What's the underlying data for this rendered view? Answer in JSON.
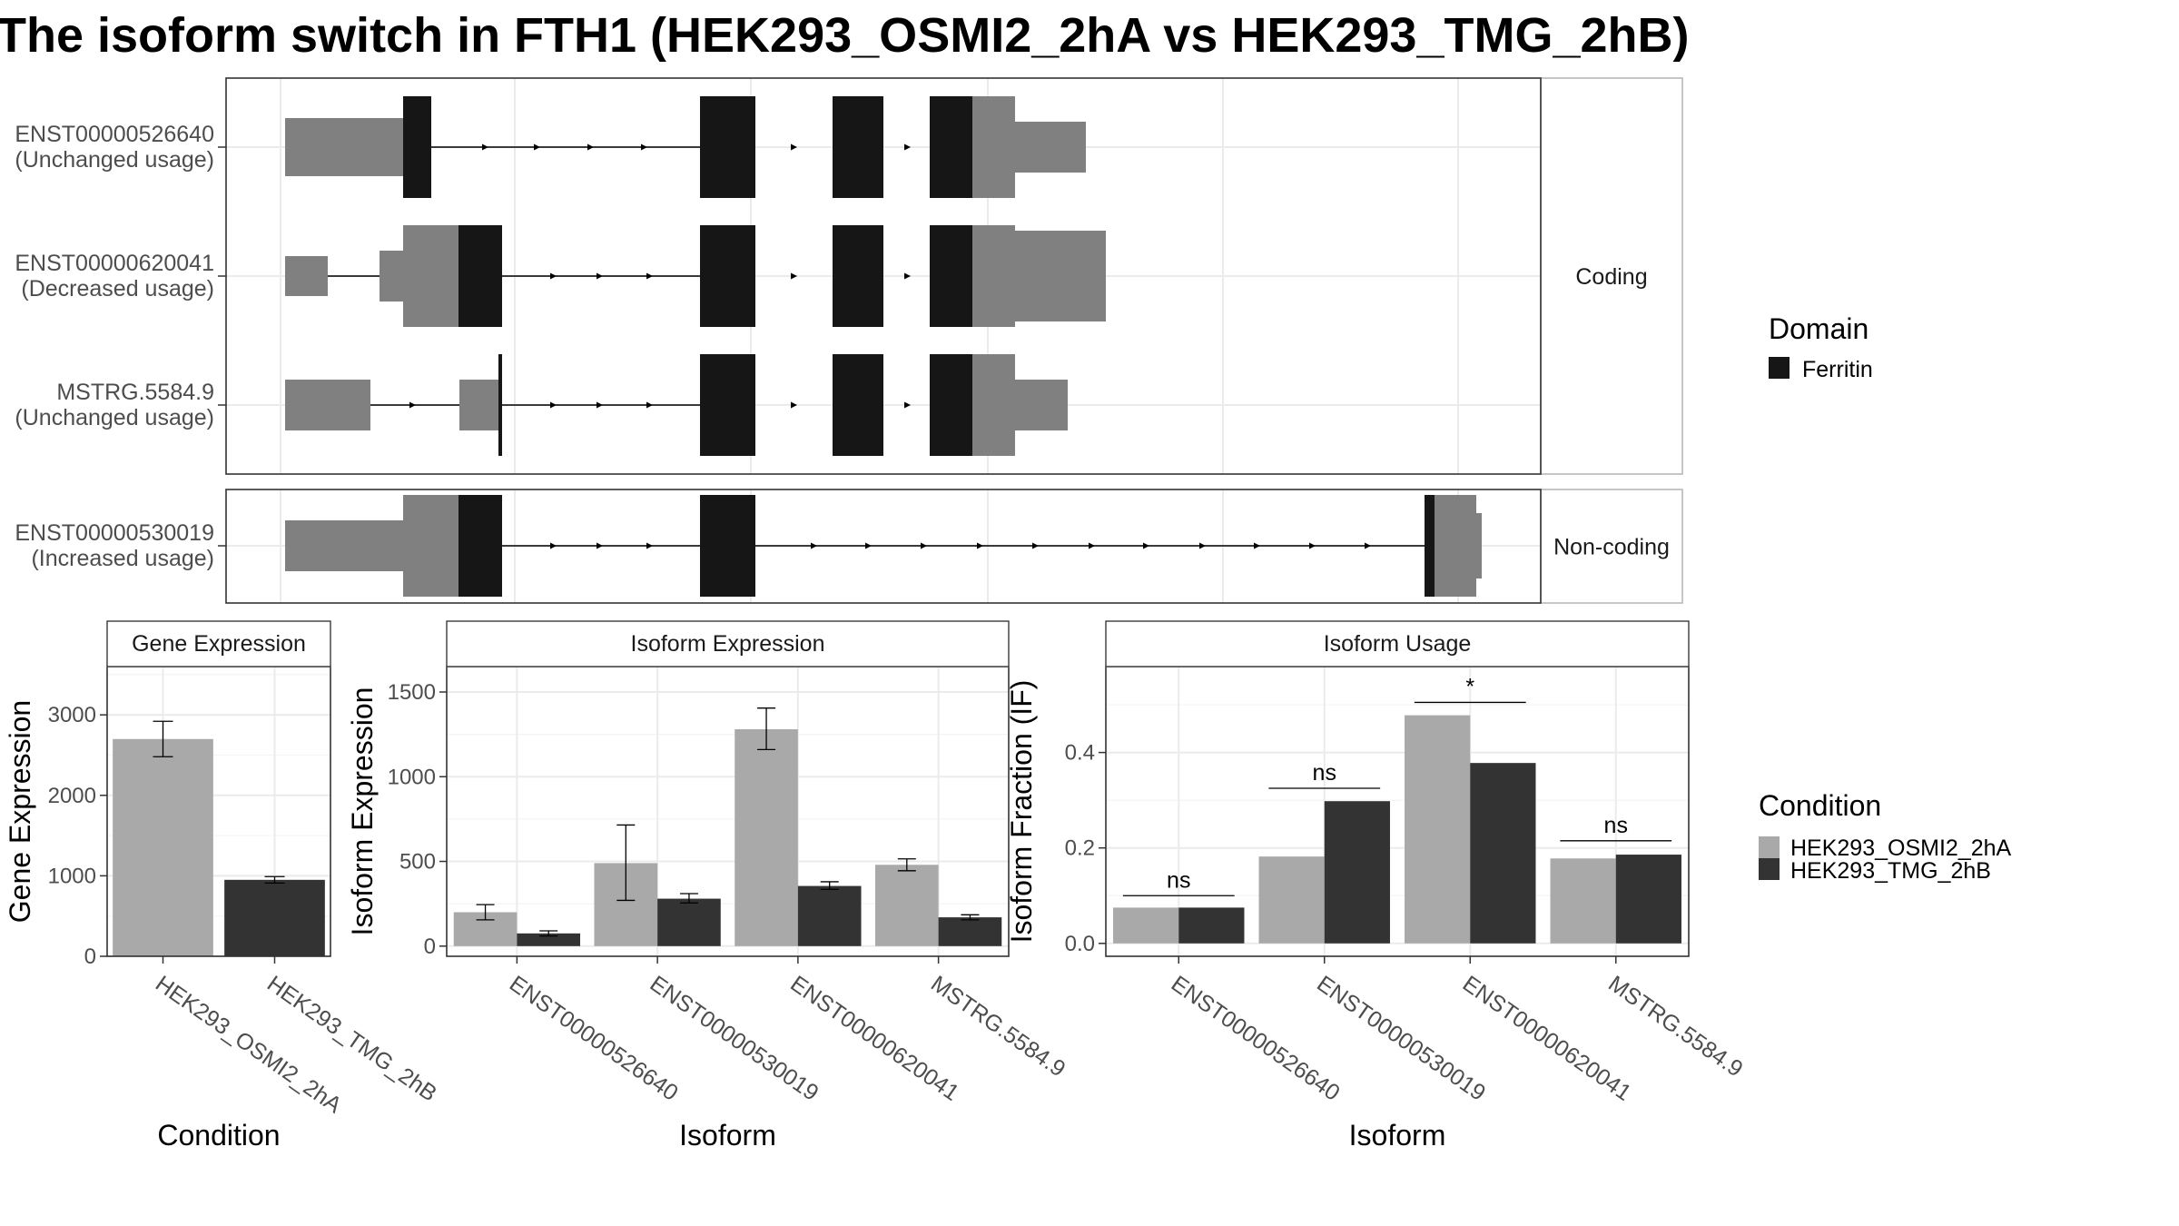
{
  "title": "The isoform switch in FTH1 (HEK293_OSMI2_2hA vs HEK293_TMG_2hB)",
  "colors": {
    "cond_a": "#a9a9a9",
    "cond_b": "#333333",
    "domain": "#161616",
    "utr": "#808080",
    "grid": "#ebebeb",
    "panel_border": "#333333",
    "strip_border": "#b3b3b3",
    "text": "#4d4d4d"
  },
  "chart_data": [
    {
      "type": "gene-structure",
      "legend": {
        "title": "Domain",
        "items": [
          "Ferritin"
        ]
      },
      "facets": [
        "Coding",
        "Non-coding"
      ],
      "transcripts": [
        {
          "id": "ENST00000526640",
          "usage": "(Unchanged usage)",
          "facet": "Coding"
        },
        {
          "id": "ENST00000620041",
          "usage": "(Decreased usage)",
          "facet": "Coding"
        },
        {
          "id": "MSTRG.5584.9",
          "usage": "(Unchanged usage)",
          "facet": "Coding"
        },
        {
          "id": "ENST00000530019",
          "usage": "(Increased usage)",
          "facet": "Non-coding"
        }
      ]
    },
    {
      "type": "bar",
      "title": "Gene Expression",
      "xlabel": "Condition",
      "ylabel": "Gene Expression",
      "categories": [
        "HEK293_OSMI2_2hA",
        "HEK293_TMG_2hB"
      ],
      "values": [
        2700,
        950
      ],
      "errors": [
        [
          2480,
          2920
        ],
        [
          910,
          990
        ]
      ],
      "yticks": [
        0,
        1000,
        2000,
        3000
      ],
      "ylim": [
        0,
        3600
      ]
    },
    {
      "type": "bar",
      "title": "Isoform Expression",
      "xlabel": "Isoform",
      "ylabel": "Isoform Expression",
      "categories": [
        "ENST00000526640",
        "ENST00000530019",
        "ENST00000620041",
        "MSTRG.5584.9"
      ],
      "series": [
        {
          "name": "HEK293_OSMI2_2hA",
          "values": [
            200,
            490,
            1280,
            480
          ],
          "errors": [
            [
              155,
              245
            ],
            [
              270,
              715
            ],
            [
              1160,
              1405
            ],
            [
              445,
              515
            ]
          ]
        },
        {
          "name": "HEK293_TMG_2hB",
          "values": [
            75,
            280,
            355,
            170
          ],
          "errors": [
            [
              60,
              90
            ],
            [
              255,
              310
            ],
            [
              335,
              380
            ],
            [
              155,
              185
            ]
          ]
        }
      ],
      "yticks": [
        0,
        500,
        1000,
        1500
      ],
      "ylim": [
        -60,
        1650
      ]
    },
    {
      "type": "bar",
      "title": "Isoform Usage",
      "xlabel": "Isoform",
      "ylabel": "Isoform Fraction (IF)",
      "categories": [
        "ENST00000526640",
        "ENST00000530019",
        "ENST00000620041",
        "MSTRG.5584.9"
      ],
      "series": [
        {
          "name": "HEK293_OSMI2_2hA",
          "values": [
            0.075,
            0.182,
            0.478,
            0.178
          ]
        },
        {
          "name": "HEK293_TMG_2hB",
          "values": [
            0.075,
            0.298,
            0.378,
            0.186
          ]
        }
      ],
      "significance": [
        "ns",
        "ns",
        "*",
        "ns"
      ],
      "sig_levels": [
        0.1,
        0.325,
        0.505,
        0.215
      ],
      "yticks": [
        0.0,
        0.2,
        0.4
      ],
      "ylim": [
        -0.027,
        0.58
      ]
    }
  ],
  "condition_legend": {
    "title": "Condition",
    "items": [
      "HEK293_OSMI2_2hA",
      "HEK293_TMG_2hB"
    ]
  }
}
